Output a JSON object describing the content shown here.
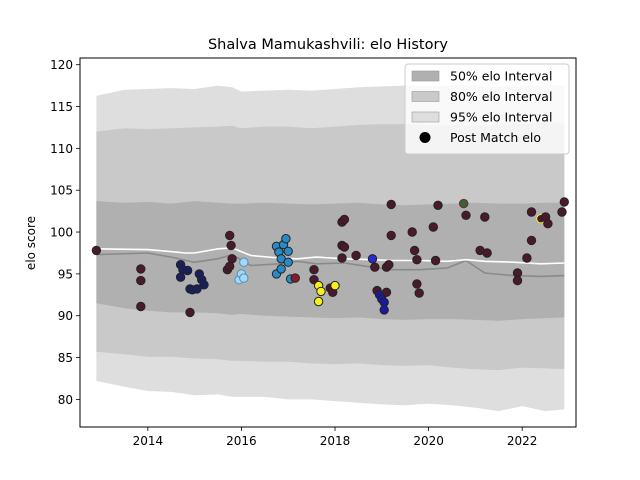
{
  "chart_data": {
    "type": "scatter",
    "title": "Shalva Mamukashvili: elo History",
    "xlabel": "",
    "ylabel": "elo score",
    "xlim": [
      2012.55,
      2023.15
    ],
    "ylim": [
      76.7,
      120.8
    ],
    "x_ticks": [
      2014,
      2016,
      2018,
      2020,
      2022
    ],
    "y_ticks": [
      80,
      85,
      90,
      95,
      100,
      105,
      110,
      115,
      120
    ],
    "legend": {
      "placement": "top-right",
      "entries": [
        {
          "label": "50% elo Interval",
          "color": "#b0b0b0",
          "kind": "band"
        },
        {
          "label": "80% elo Interval",
          "color": "#c9c9c9",
          "kind": "band"
        },
        {
          "label": "95% elo Interval",
          "color": "#dedede",
          "kind": "band"
        },
        {
          "label": "Post Match elo",
          "color": "#000000",
          "kind": "marker"
        }
      ]
    },
    "colors": {
      "band50": "#b0b0b0",
      "band80": "#c9c9c9",
      "band95": "#dedede",
      "mean_line": "#ffffff",
      "median_line": "#8a8a8a"
    },
    "bands": {
      "x": [
        2012.9,
        2013.5,
        2014.0,
        2014.5,
        2015.0,
        2015.5,
        2015.8,
        2016.0,
        2016.5,
        2017.0,
        2017.5,
        2018.0,
        2018.5,
        2019.0,
        2019.5,
        2020.0,
        2020.5,
        2021.0,
        2021.5,
        2022.0,
        2022.5,
        2022.9
      ],
      "lower95": [
        82.2,
        81.5,
        81.0,
        80.9,
        80.5,
        80.6,
        80.3,
        80.3,
        80.3,
        80.0,
        80.0,
        79.8,
        79.6,
        79.4,
        79.3,
        79.5,
        79.3,
        79.0,
        78.6,
        79.2,
        78.6,
        78.8
      ],
      "upper95": [
        116.3,
        117.0,
        117.1,
        117.2,
        117.1,
        117.5,
        117.3,
        116.8,
        116.9,
        117.0,
        116.9,
        117.1,
        117.3,
        117.4,
        117.5,
        117.4,
        117.5,
        117.5,
        117.3,
        117.5,
        117.6,
        117.5
      ],
      "lower80": [
        85.7,
        85.4,
        85.1,
        85.1,
        84.9,
        84.8,
        84.6,
        84.6,
        84.5,
        84.5,
        84.3,
        84.2,
        84.3,
        84.1,
        84.0,
        84.1,
        83.8,
        83.6,
        83.5,
        83.8,
        83.7,
        83.6
      ],
      "upper80": [
        112.0,
        112.4,
        112.3,
        112.4,
        112.5,
        112.6,
        112.7,
        112.4,
        112.6,
        112.6,
        112.4,
        112.6,
        112.8,
        112.9,
        112.9,
        112.7,
        112.8,
        112.7,
        112.8,
        112.9,
        113.1,
        113.0
      ],
      "lower50": [
        91.5,
        90.9,
        90.6,
        90.4,
        90.4,
        90.3,
        90.1,
        90.2,
        90.0,
        89.9,
        89.8,
        89.7,
        89.8,
        89.6,
        89.5,
        89.6,
        89.6,
        89.5,
        89.4,
        89.6,
        89.7,
        89.8
      ],
      "upper50": [
        103.7,
        103.5,
        103.6,
        103.4,
        103.7,
        103.5,
        103.4,
        103.4,
        103.5,
        103.4,
        103.3,
        103.4,
        103.5,
        103.3,
        103.2,
        103.3,
        103.4,
        103.5,
        103.4,
        103.4,
        103.5,
        103.5
      ]
    },
    "mean_line": {
      "x": [
        2012.9,
        2014.0,
        2014.6,
        2014.8,
        2015.0,
        2015.5,
        2015.8,
        2016.2,
        2016.8,
        2017.2,
        2017.6,
        2018.2,
        2018.8,
        2019.2,
        2019.8,
        2020.4,
        2020.8,
        2021.2,
        2021.8,
        2022.4,
        2022.9
      ],
      "y": [
        98.0,
        97.9,
        97.6,
        97.5,
        97.5,
        98.0,
        98.1,
        97.2,
        96.9,
        96.8,
        97.0,
        96.8,
        96.7,
        96.6,
        96.6,
        96.5,
        96.7,
        96.5,
        96.4,
        96.2,
        96.3
      ]
    },
    "median_line": {
      "x": [
        2012.9,
        2014.0,
        2014.6,
        2014.8,
        2015.0,
        2015.5,
        2015.8,
        2016.2,
        2016.8,
        2017.2,
        2017.6,
        2018.2,
        2018.8,
        2019.2,
        2019.8,
        2020.4,
        2020.8,
        2021.2,
        2021.8,
        2022.4,
        2022.9
      ],
      "y": [
        97.3,
        97.5,
        96.9,
        96.6,
        96.4,
        96.8,
        97.3,
        96.0,
        96.2,
        96.5,
        96.2,
        96.3,
        95.8,
        95.5,
        95.5,
        95.7,
        96.6,
        95.1,
        94.8,
        94.7,
        94.8
      ]
    },
    "points": [
      {
        "x": 2012.9,
        "y": 97.8,
        "c": "#4a1a2c"
      },
      {
        "x": 2013.85,
        "y": 91.1,
        "c": "#4a1a2c"
      },
      {
        "x": 2013.85,
        "y": 95.6,
        "c": "#4a1a2c"
      },
      {
        "x": 2013.85,
        "y": 94.2,
        "c": "#4a1a2c"
      },
      {
        "x": 2014.7,
        "y": 96.1,
        "c": "#1a1f5e"
      },
      {
        "x": 2014.75,
        "y": 95.5,
        "c": "#1a1f5e"
      },
      {
        "x": 2014.7,
        "y": 94.6,
        "c": "#1a1f5e"
      },
      {
        "x": 2014.9,
        "y": 93.2,
        "c": "#1a1f5e"
      },
      {
        "x": 2014.95,
        "y": 93.1,
        "c": "#1a1f5e"
      },
      {
        "x": 2015.05,
        "y": 93.2,
        "c": "#1a1f5e"
      },
      {
        "x": 2015.1,
        "y": 95.0,
        "c": "#1a1f5e"
      },
      {
        "x": 2015.15,
        "y": 94.3,
        "c": "#1a1f5e"
      },
      {
        "x": 2015.2,
        "y": 93.7,
        "c": "#1a1f5e"
      },
      {
        "x": 2014.85,
        "y": 95.4,
        "c": "#1a1f5e"
      },
      {
        "x": 2014.9,
        "y": 90.4,
        "c": "#4a1a2c"
      },
      {
        "x": 2015.7,
        "y": 95.5,
        "c": "#4a1a2c"
      },
      {
        "x": 2015.75,
        "y": 99.6,
        "c": "#4a1a2c"
      },
      {
        "x": 2015.78,
        "y": 98.4,
        "c": "#4a1a2c"
      },
      {
        "x": 2015.8,
        "y": 96.8,
        "c": "#4a1a2c"
      },
      {
        "x": 2015.75,
        "y": 95.9,
        "c": "#4a1a2c"
      },
      {
        "x": 2015.95,
        "y": 94.3,
        "c": "#a6d8f0",
        "edge": "#4a90c8"
      },
      {
        "x": 2016.0,
        "y": 95.0,
        "c": "#a6d8f0",
        "edge": "#4a90c8"
      },
      {
        "x": 2016.05,
        "y": 94.5,
        "c": "#a6d8f0",
        "edge": "#4a90c8"
      },
      {
        "x": 2016.05,
        "y": 96.4,
        "c": "#a6d8f0",
        "edge": "#4a90c8"
      },
      {
        "x": 2016.75,
        "y": 98.3,
        "c": "#2a8ac8"
      },
      {
        "x": 2016.8,
        "y": 97.6,
        "c": "#2a8ac8"
      },
      {
        "x": 2016.85,
        "y": 96.8,
        "c": "#2a8ac8"
      },
      {
        "x": 2016.9,
        "y": 98.5,
        "c": "#2a8ac8"
      },
      {
        "x": 2016.95,
        "y": 99.2,
        "c": "#2a8ac8"
      },
      {
        "x": 2017.0,
        "y": 97.7,
        "c": "#2a8ac8"
      },
      {
        "x": 2017.0,
        "y": 96.4,
        "c": "#2a8ac8"
      },
      {
        "x": 2016.75,
        "y": 95.0,
        "c": "#2a8ac8"
      },
      {
        "x": 2016.85,
        "y": 95.6,
        "c": "#2a8ac8"
      },
      {
        "x": 2017.05,
        "y": 94.4,
        "c": "#2a8ac8"
      },
      {
        "x": 2017.15,
        "y": 94.5,
        "c": "#8a1a2a"
      },
      {
        "x": 2017.55,
        "y": 95.5,
        "c": "#4a1a2c"
      },
      {
        "x": 2017.55,
        "y": 94.3,
        "c": "#4a1a2c"
      },
      {
        "x": 2017.65,
        "y": 93.6,
        "c": "#f5f01e"
      },
      {
        "x": 2017.7,
        "y": 92.9,
        "c": "#f5f01e"
      },
      {
        "x": 2017.65,
        "y": 91.7,
        "c": "#f5f01e"
      },
      {
        "x": 2017.9,
        "y": 93.3,
        "c": "#4a1a2c"
      },
      {
        "x": 2017.95,
        "y": 92.8,
        "c": "#4a1a2c"
      },
      {
        "x": 2018.0,
        "y": 93.6,
        "c": "#f5f01e"
      },
      {
        "x": 2018.15,
        "y": 101.2,
        "c": "#4a1a2c"
      },
      {
        "x": 2018.2,
        "y": 101.5,
        "c": "#4a1a2c"
      },
      {
        "x": 2018.15,
        "y": 98.4,
        "c": "#4a1a2c"
      },
      {
        "x": 2018.2,
        "y": 98.2,
        "c": "#4a1a2c"
      },
      {
        "x": 2018.45,
        "y": 97.2,
        "c": "#4a1a2c"
      },
      {
        "x": 2018.15,
        "y": 96.9,
        "c": "#4a1a2c"
      },
      {
        "x": 2018.8,
        "y": 96.8,
        "c": "#2a2ad0"
      },
      {
        "x": 2018.85,
        "y": 95.8,
        "c": "#4a1a2c"
      },
      {
        "x": 2018.9,
        "y": 93.0,
        "c": "#4a1a2c"
      },
      {
        "x": 2018.95,
        "y": 92.5,
        "c": "#1a1aa0"
      },
      {
        "x": 2019.0,
        "y": 92.0,
        "c": "#1a1aa0"
      },
      {
        "x": 2019.05,
        "y": 91.6,
        "c": "#1a1aa0"
      },
      {
        "x": 2019.05,
        "y": 90.7,
        "c": "#1a1aa0"
      },
      {
        "x": 2019.1,
        "y": 95.8,
        "c": "#4a1a2c"
      },
      {
        "x": 2019.15,
        "y": 96.1,
        "c": "#4a1a2c"
      },
      {
        "x": 2019.1,
        "y": 92.8,
        "c": "#4a1a2c"
      },
      {
        "x": 2019.2,
        "y": 103.3,
        "c": "#4a1a2c"
      },
      {
        "x": 2019.2,
        "y": 99.6,
        "c": "#4a1a2c"
      },
      {
        "x": 2019.65,
        "y": 100.0,
        "c": "#4a1a2c"
      },
      {
        "x": 2019.7,
        "y": 97.8,
        "c": "#4a1a2c"
      },
      {
        "x": 2019.75,
        "y": 96.7,
        "c": "#4a1a2c"
      },
      {
        "x": 2019.75,
        "y": 93.8,
        "c": "#4a1a2c"
      },
      {
        "x": 2019.8,
        "y": 92.7,
        "c": "#4a1a2c"
      },
      {
        "x": 2020.1,
        "y": 100.6,
        "c": "#4a1a2c"
      },
      {
        "x": 2020.15,
        "y": 96.6,
        "c": "#4a1a2c"
      },
      {
        "x": 2020.2,
        "y": 103.2,
        "c": "#4a1a2c"
      },
      {
        "x": 2020.75,
        "y": 103.4,
        "c": "#2a6a3a",
        "edge": "#8a1a2a"
      },
      {
        "x": 2020.8,
        "y": 102.0,
        "c": "#4a1a2c"
      },
      {
        "x": 2021.1,
        "y": 97.8,
        "c": "#4a1a2c"
      },
      {
        "x": 2021.2,
        "y": 101.8,
        "c": "#4a1a2c"
      },
      {
        "x": 2021.25,
        "y": 97.5,
        "c": "#4a1a2c"
      },
      {
        "x": 2021.9,
        "y": 95.1,
        "c": "#4a1a2c"
      },
      {
        "x": 2021.9,
        "y": 94.2,
        "c": "#4a1a2c"
      },
      {
        "x": 2022.1,
        "y": 96.9,
        "c": "#4a1a2c"
      },
      {
        "x": 2022.2,
        "y": 99.0,
        "c": "#4a1a2c"
      },
      {
        "x": 2022.2,
        "y": 102.4,
        "c": "#4a1a2c"
      },
      {
        "x": 2022.4,
        "y": 101.6,
        "c": "#4a1a2c",
        "edge": "#f5f01e"
      },
      {
        "x": 2022.5,
        "y": 101.8,
        "c": "#4a1a2c"
      },
      {
        "x": 2022.55,
        "y": 101.0,
        "c": "#4a1a2c"
      },
      {
        "x": 2022.85,
        "y": 102.4,
        "c": "#4a1a2c"
      },
      {
        "x": 2022.9,
        "y": 103.6,
        "c": "#4a1a2c"
      }
    ]
  }
}
